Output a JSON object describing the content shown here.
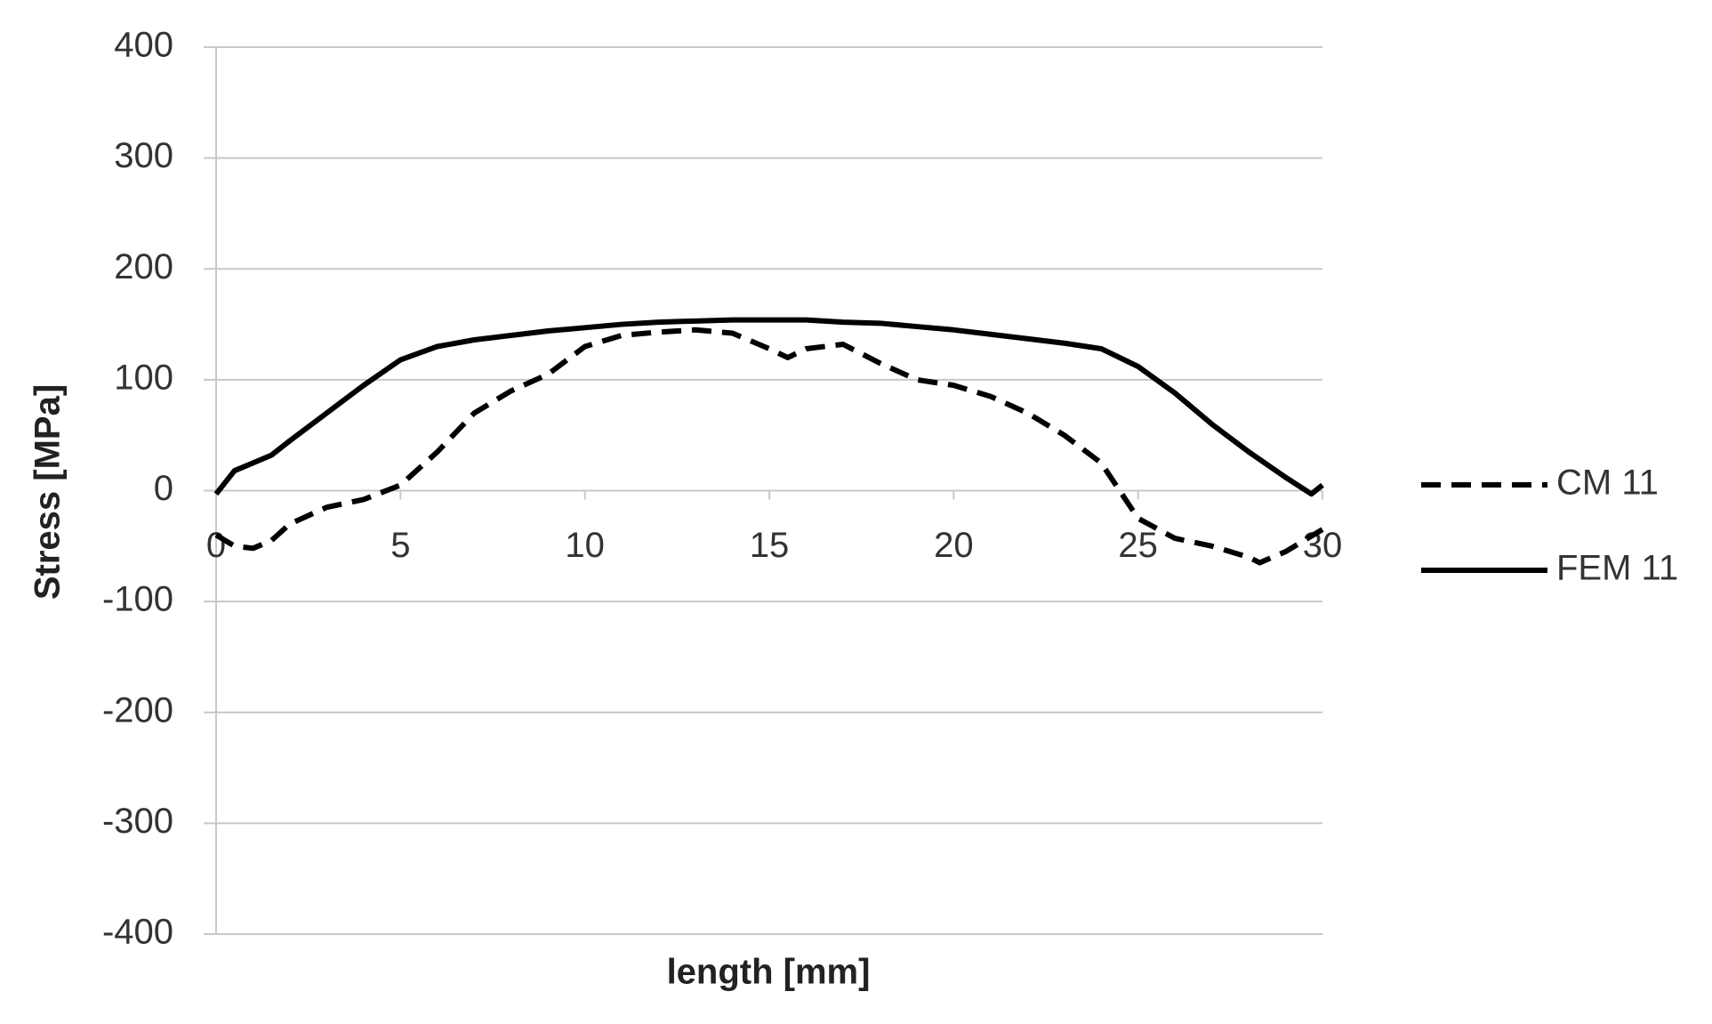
{
  "chart_data": {
    "type": "line",
    "xlabel": "length [mm]",
    "ylabel": "Stress [MPa]",
    "xlim": [
      0,
      30
    ],
    "xticks": [
      0,
      5,
      10,
      15,
      20,
      25,
      30
    ],
    "ylim": [
      -400,
      400
    ],
    "yticks": [
      -400,
      -300,
      -200,
      -100,
      0,
      100,
      200,
      300,
      400
    ],
    "grid": true,
    "legend": "right",
    "series": [
      {
        "name": "CM 11",
        "color": "#000000",
        "style": "dashed",
        "x": [
          0,
          0.5,
          1,
          1.5,
          2,
          3,
          4,
          5,
          6,
          7,
          8,
          9,
          10,
          11,
          12,
          13,
          14,
          15,
          15.5,
          16,
          17,
          18,
          19,
          20,
          21,
          22,
          23,
          24,
          25,
          26,
          27,
          28,
          28.3,
          29,
          30
        ],
        "values": [
          -40,
          -50,
          -52,
          -45,
          -30,
          -15,
          -8,
          5,
          35,
          70,
          90,
          105,
          130,
          140,
          143,
          145,
          142,
          128,
          120,
          128,
          132,
          115,
          100,
          95,
          85,
          70,
          50,
          25,
          -25,
          -43,
          -50,
          -60,
          -65,
          -55,
          -35
        ]
      },
      {
        "name": "FEM 11",
        "color": "#000000",
        "style": "solid",
        "x": [
          0,
          0.5,
          1,
          1.5,
          2,
          3,
          4,
          5,
          6,
          7,
          8,
          9,
          10,
          11,
          12,
          13,
          14,
          15,
          16,
          17,
          18,
          19,
          20,
          21,
          22,
          23,
          24,
          25,
          26,
          27,
          28,
          29,
          29.7,
          30
        ],
        "values": [
          -3,
          18,
          25,
          32,
          45,
          70,
          95,
          118,
          130,
          136,
          140,
          144,
          147,
          150,
          152,
          153,
          154,
          154,
          154,
          152,
          151,
          148,
          145,
          141,
          137,
          133,
          128,
          112,
          88,
          60,
          35,
          12,
          -3,
          5
        ]
      }
    ]
  }
}
